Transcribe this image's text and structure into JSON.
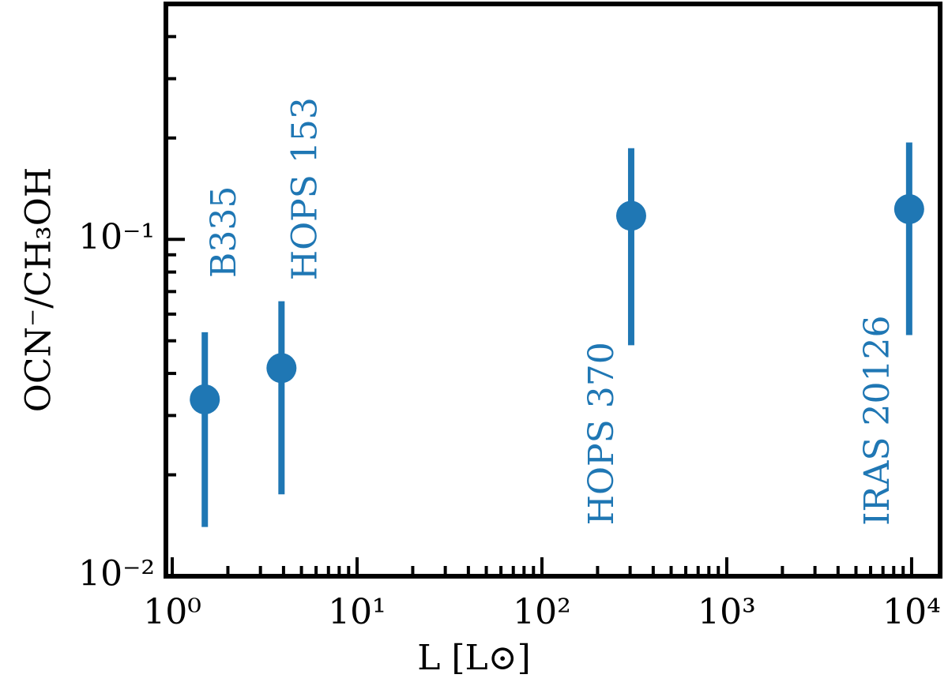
{
  "chart_data": {
    "type": "errorbar-scatter",
    "xlabel": "L [L⊙]",
    "ylabel": "OCN⁻/CH₃OH",
    "x": [
      1.5,
      3.9,
      304,
      9700
    ],
    "values": [
      0.0335,
      0.0415,
      0.1175,
      0.123
    ],
    "errors": [
      0.0195,
      0.024,
      0.069,
      0.071
    ],
    "labels": [
      "B335",
      "HOPS 153",
      "HOPS 370",
      "IRAS 20126"
    ],
    "color": "#1f77b4",
    "xscale": "log",
    "yscale": "log",
    "xlim": [
      0.924,
      14260
    ],
    "ylim": [
      0.01,
      0.5
    ],
    "xticks": [
      {
        "value": 1,
        "label": "10⁰"
      },
      {
        "value": 10,
        "label": "10¹"
      },
      {
        "value": 100,
        "label": "10²"
      },
      {
        "value": 1000,
        "label": "10³"
      },
      {
        "value": 10000,
        "label": "10⁴"
      }
    ],
    "yticks": [
      {
        "value": 0.01,
        "label": "10⁻²"
      },
      {
        "value": 0.1,
        "label": "10⁻¹"
      }
    ],
    "xminorticks": [
      2,
      3,
      4,
      5,
      6,
      7,
      8,
      9,
      20,
      30,
      40,
      50,
      60,
      70,
      80,
      90,
      200,
      300,
      400,
      500,
      600,
      700,
      800,
      900,
      2000,
      3000,
      4000,
      5000,
      6000,
      7000,
      8000,
      9000
    ],
    "yminorticks": [
      0.02,
      0.03,
      0.04,
      0.05,
      0.06,
      0.07,
      0.08,
      0.09,
      0.2,
      0.3,
      0.4,
      0.5
    ],
    "grid": false
  }
}
